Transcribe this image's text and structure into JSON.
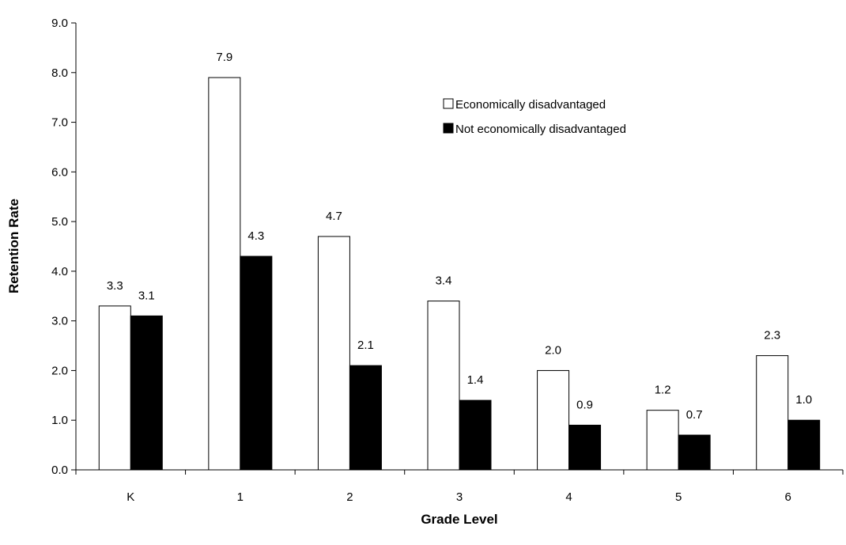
{
  "chart_data": {
    "type": "bar",
    "title": "",
    "xlabel": "Grade Level",
    "ylabel": "Retention Rate",
    "categories": [
      "K",
      "1",
      "2",
      "3",
      "4",
      "5",
      "6"
    ],
    "ylim": [
      0,
      9
    ],
    "yticks": [
      "0.0",
      "1.0",
      "2.0",
      "3.0",
      "4.0",
      "5.0",
      "6.0",
      "7.0",
      "8.0",
      "9.0"
    ],
    "grid": false,
    "legend_position": "top-right",
    "series": [
      {
        "name": "Economically disadvantaged",
        "color": "#ffffff",
        "values": [
          3.3,
          7.9,
          4.7,
          3.4,
          2.0,
          1.2,
          2.3
        ],
        "labels": [
          "3.3",
          "7.9",
          "4.7",
          "3.4",
          "2.0",
          "1.2",
          "2.3"
        ]
      },
      {
        "name": "Not economically disadvantaged",
        "color": "#000000",
        "values": [
          3.1,
          4.3,
          2.1,
          1.4,
          0.9,
          0.7,
          1.0
        ],
        "labels": [
          "3.1",
          "4.3",
          "2.1",
          "1.4",
          "0.9",
          "0.7",
          "1.0"
        ]
      }
    ]
  }
}
